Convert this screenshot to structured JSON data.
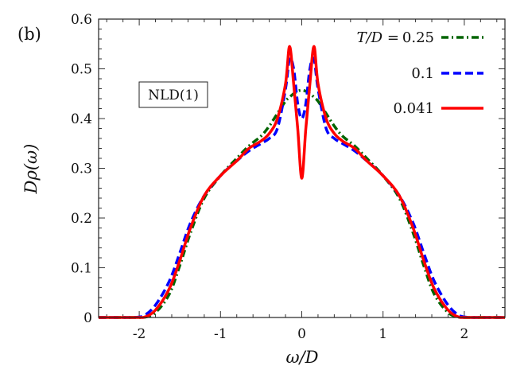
{
  "chart_data": {
    "type": "line",
    "panel_label": "(b)",
    "annotation": "NLD(1)",
    "xlabel": "ω/D",
    "ylabel": "Dρ(ω)",
    "xlim": [
      -2.5,
      2.5
    ],
    "ylim": [
      0,
      0.6
    ],
    "xticks": [
      "-2",
      "-1",
      "0",
      "1",
      "2"
    ],
    "xtick_values": [
      -2,
      -1,
      0,
      1,
      2
    ],
    "yticks": [
      "0",
      "0.1",
      "0.2",
      "0.3",
      "0.4",
      "0.5",
      "0.6"
    ],
    "ytick_values": [
      0,
      0.1,
      0.2,
      0.3,
      0.4,
      0.5,
      0.6
    ],
    "grid": false,
    "legend_position": "top-right",
    "legend_title": "T/D =",
    "x_abs": [
      0,
      0.05,
      0.1,
      0.15,
      0.2,
      0.3,
      0.4,
      0.5,
      0.65,
      0.8,
      1.0,
      1.2,
      1.37,
      1.5,
      1.63,
      1.8,
      1.95,
      2.1,
      2.5
    ],
    "series": [
      {
        "name": "0.25",
        "color": "#006400",
        "style": "dash-dot",
        "y": [
          0.457,
          0.455,
          0.45,
          0.443,
          0.435,
          0.41,
          0.385,
          0.365,
          0.345,
          0.32,
          0.285,
          0.24,
          0.17,
          0.105,
          0.047,
          0.01,
          0.0,
          0.0,
          0.0
        ]
      },
      {
        "name": "0.1",
        "color": "#0000ff",
        "style": "dashed",
        "y": [
          0.4,
          0.43,
          0.5,
          0.52,
          0.46,
          0.38,
          0.36,
          0.35,
          0.335,
          0.315,
          0.285,
          0.245,
          0.19,
          0.13,
          0.073,
          0.025,
          0.003,
          0.0,
          0.0
        ]
      },
      {
        "name": "0.041",
        "color": "#ff0000",
        "style": "solid",
        "y": [
          0.28,
          0.38,
          0.47,
          0.545,
          0.47,
          0.4,
          0.37,
          0.355,
          0.34,
          0.315,
          0.285,
          0.245,
          0.18,
          0.115,
          0.058,
          0.015,
          0.0,
          0.0,
          0.0
        ]
      }
    ]
  }
}
